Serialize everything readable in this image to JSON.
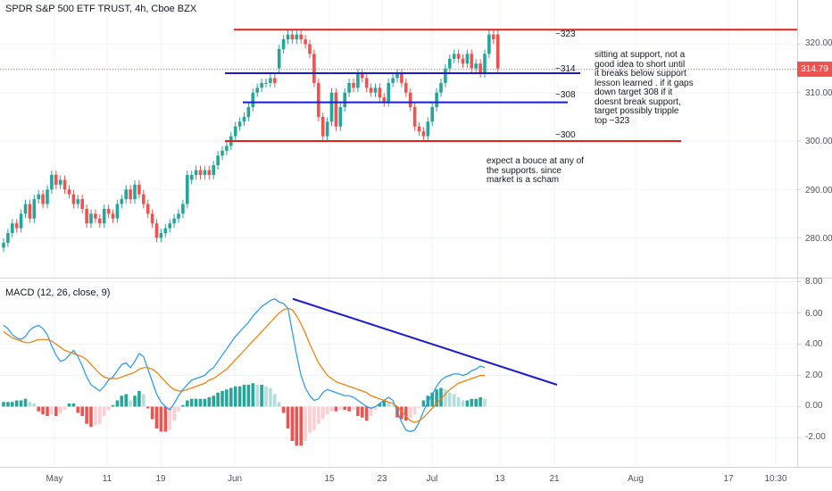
{
  "chart_data": [
    {
      "type": "candlestick",
      "title": "SPDR S&P 500 ETF TRUST, 4h, Cboe BZX",
      "yticks": [
        "320.00",
        "310.00",
        "300.00",
        "290.00",
        "280.00"
      ],
      "ylim": [
        273,
        328
      ],
      "last_price": "314.79",
      "xticks": [
        "May",
        "11",
        "19",
        "Jun",
        "15",
        "23",
        "Jul",
        "13",
        "21",
        "Aug",
        "17",
        "10:30"
      ],
      "close": [
        279,
        281,
        283,
        282,
        285,
        287,
        284,
        288,
        289,
        287,
        290,
        293,
        291,
        292,
        290,
        289,
        287,
        288,
        286,
        283,
        285,
        284,
        283,
        286,
        285,
        284,
        287,
        288,
        290,
        288,
        291,
        289,
        287,
        285,
        283,
        280,
        281,
        282,
        283,
        284,
        285,
        287,
        293,
        293,
        294,
        293,
        294,
        293,
        295,
        297,
        298,
        299,
        301,
        303,
        304,
        305,
        307,
        310,
        311,
        312,
        312,
        313,
        312,
        319,
        321,
        322,
        321,
        322,
        321,
        320,
        318,
        312,
        305,
        301,
        304,
        310,
        303,
        307,
        310,
        312,
        311,
        314,
        313,
        311,
        310,
        311,
        309,
        308,
        312,
        313,
        314,
        312,
        310,
        307,
        303,
        302,
        301,
        304,
        307,
        310,
        312,
        315,
        317,
        318,
        317,
        316,
        318,
        315,
        316,
        314,
        318,
        322,
        321,
        315
      ],
      "open": [
        278,
        279,
        281,
        283,
        282,
        285,
        287,
        284,
        288,
        289,
        287,
        290,
        293,
        291,
        292,
        290,
        289,
        287,
        288,
        286,
        283,
        285,
        284,
        283,
        286,
        285,
        284,
        287,
        288,
        290,
        288,
        291,
        289,
        287,
        285,
        283,
        280,
        281,
        282,
        283,
        284,
        285,
        287,
        292,
        293,
        294,
        293,
        294,
        293,
        295,
        297,
        298,
        299,
        301,
        303,
        304,
        305,
        307,
        310,
        311,
        312,
        312,
        313,
        315,
        319,
        321,
        322,
        321,
        322,
        321,
        320,
        318,
        312,
        305,
        301,
        304,
        310,
        303,
        307,
        310,
        312,
        311,
        314,
        313,
        311,
        310,
        311,
        309,
        308,
        312,
        313,
        314,
        312,
        310,
        307,
        303,
        302,
        301,
        304,
        307,
        310,
        312,
        315,
        317,
        318,
        317,
        316,
        318,
        315,
        316,
        314,
        318,
        322,
        322
      ],
      "support_resistance": [
        323,
        314,
        308,
        300
      ],
      "level_labels": [
        "~323",
        "~314",
        "~308",
        "~300"
      ]
    },
    {
      "type": "line",
      "title": "MACD (12, 26, close, 9)",
      "yticks": [
        "8.00",
        "6.00",
        "4.00",
        "2.00",
        "0.00",
        "-2.00"
      ],
      "ylim": [
        -3.5,
        8
      ],
      "series": [
        {
          "values": [
            5.2,
            5.0,
            4.6,
            4.4,
            4.3,
            4.5,
            4.9,
            5.1,
            5.2,
            5.0,
            4.6,
            3.9,
            3.3,
            2.9,
            3.0,
            3.3,
            3.6,
            3.2,
            2.6,
            1.9,
            1.4,
            1.2,
            1.0,
            1.3,
            1.7,
            1.9,
            2.3,
            2.7,
            2.8,
            2.5,
            2.9,
            3.4,
            3.2,
            2.4,
            1.6,
            0.8,
            0.3,
            0.0,
            -0.2,
            0.2,
            0.7,
            1.1,
            1.4,
            1.7,
            1.8,
            1.9,
            2.0,
            2.3,
            2.5,
            2.9,
            3.3,
            3.7,
            4.1,
            4.5,
            4.8,
            5.1,
            5.4,
            5.8,
            6.1,
            6.4,
            6.6,
            6.8,
            6.9,
            6.7,
            6.6,
            6.3,
            4.8,
            3.3,
            2.0,
            1.2,
            0.7,
            0.4,
            0.5,
            0.9,
            1.1,
            1.0,
            0.9,
            0.8,
            0.7,
            0.7,
            0.6,
            0.4,
            0.2,
            0.0,
            -0.1,
            0.0,
            0.2,
            0.4,
            0.6,
            0.4,
            -0.3,
            -1.0,
            -1.5,
            -1.6,
            -1.5,
            -1.0,
            -0.3,
            0.3,
            0.8,
            1.3,
            1.7,
            1.9,
            2.0,
            2.1,
            2.1,
            2.0,
            2.1,
            2.3,
            2.4,
            2.6,
            2.5
          ]
        },
        {
          "values": [
            4.8,
            4.6,
            4.4,
            4.3,
            4.2,
            4.1,
            4.1,
            4.2,
            4.3,
            4.3,
            4.3,
            4.2,
            4.0,
            3.8,
            3.6,
            3.5,
            3.4,
            3.3,
            3.2,
            3.0,
            2.7,
            2.4,
            2.1,
            1.9,
            1.8,
            1.8,
            1.8,
            1.9,
            2.0,
            2.1,
            2.2,
            2.4,
            2.5,
            2.5,
            2.4,
            2.2,
            1.9,
            1.6,
            1.3,
            1.1,
            1.0,
            1.0,
            1.1,
            1.2,
            1.3,
            1.4,
            1.5,
            1.7,
            1.8,
            2.0,
            2.2,
            2.4,
            2.7,
            3.0,
            3.3,
            3.6,
            3.9,
            4.2,
            4.5,
            4.8,
            5.1,
            5.4,
            5.7,
            6.0,
            6.2,
            6.3,
            6.2,
            5.8,
            5.3,
            4.7,
            4.0,
            3.4,
            2.8,
            2.4,
            2.0,
            1.8,
            1.6,
            1.5,
            1.4,
            1.3,
            1.2,
            1.1,
            1.0,
            0.9,
            0.7,
            0.6,
            0.5,
            0.4,
            0.3,
            0.2,
            0.0,
            -0.3,
            -0.6,
            -0.9,
            -1.0,
            -0.9,
            -0.7,
            -0.4,
            -0.1,
            0.2,
            0.5,
            0.8,
            1.1,
            1.3,
            1.5,
            1.6,
            1.7,
            1.8,
            1.9,
            2.0,
            2.0
          ]
        }
      ],
      "histogram": [
        0.3,
        0.3,
        0.3,
        0.4,
        0.4,
        0.5,
        0.3,
        0.2,
        -0.3,
        -0.5,
        -0.6,
        -0.5,
        -0.6,
        -0.4,
        -0.2,
        0.2,
        0.2,
        -0.4,
        -0.6,
        -1.1,
        -1.3,
        -1.2,
        -1.1,
        -0.6,
        -0.2,
        0.1,
        0.4,
        0.7,
        0.8,
        0.4,
        0.7,
        1.0,
        0.8,
        -0.1,
        -0.8,
        -1.4,
        -1.6,
        -1.6,
        -1.5,
        -0.9,
        -0.3,
        0.1,
        0.4,
        0.5,
        0.5,
        0.5,
        0.5,
        0.6,
        0.7,
        0.9,
        1.0,
        1.1,
        1.2,
        1.3,
        1.3,
        1.4,
        1.4,
        1.5,
        1.4,
        1.4,
        1.3,
        1.2,
        0.8,
        0.3,
        -0.4,
        -1.4,
        -2.2,
        -2.5,
        -2.5,
        -2.2,
        -1.7,
        -1.5,
        -1.1,
        -0.8,
        -0.5,
        -0.3,
        -0.3,
        -0.2,
        -0.2,
        -0.3,
        -0.2,
        -0.6,
        -0.7,
        -0.9,
        -0.6,
        -0.2,
        0.2,
        0.4,
        0.3,
        0.1,
        -0.7,
        -0.8,
        -0.9,
        -0.7,
        -0.5,
        -0.1,
        0.4,
        0.7,
        0.9,
        1.1,
        1.2,
        1.1,
        0.9,
        0.8,
        0.6,
        0.4,
        0.4,
        0.5,
        0.5,
        0.6,
        0.5
      ]
    }
  ],
  "notes": {
    "upper": "sitting at support, not a\ngood idea to short until\nit breaks below support\nlesson learned . if it gaps\ndown  target 308  if it\ndoesnt break support,\ntarget possibly  tripple\ntop ~323",
    "lower": "expect a bouce at any of\nthe supports. since\nmarket is a scham"
  },
  "colors": {
    "up": "#26a69a",
    "down": "#ef5350",
    "resistance": "#e3231a",
    "support": "#1b1dcc",
    "macd": "#2196f3",
    "signal": "#f57c00",
    "hist_up_strong": "#26a69a",
    "hist_up_weak": "#b2dfdb",
    "hist_down_strong": "#ef5350",
    "hist_down_weak": "#ffcdd2"
  }
}
